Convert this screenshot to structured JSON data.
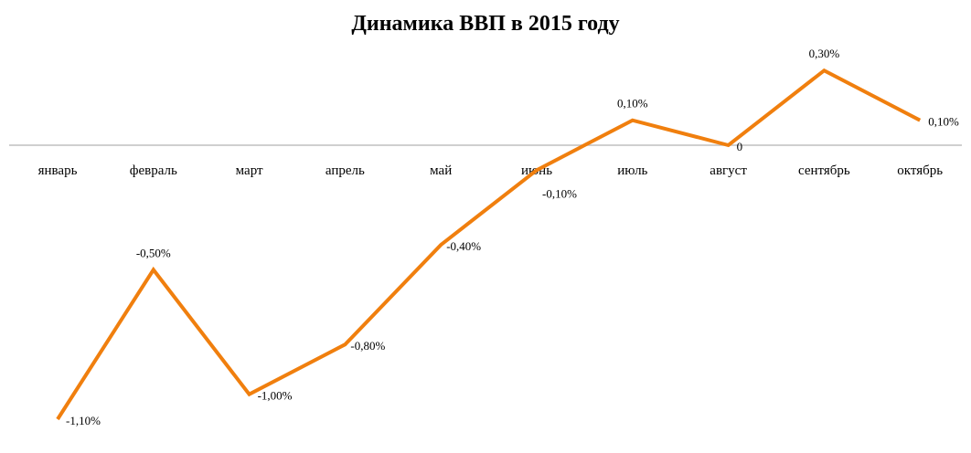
{
  "chart_data": {
    "type": "line",
    "title": "Динамика ВВП в 2015 году",
    "categories": [
      "январь",
      "февраль",
      "март",
      "апрель",
      "май",
      "июнь",
      "июль",
      "август",
      "сентябрь",
      "октябрь"
    ],
    "series": [
      {
        "values": [
          -1.1,
          -0.5,
          -1.0,
          -0.8,
          -0.4,
          -0.1,
          0.1,
          0.0,
          0.3,
          0.1
        ],
        "data_labels": [
          "-1,10%",
          "-0,50%",
          "-1,00%",
          "-0,80%",
          "-0,40%",
          "-0,10%",
          "0,10%",
          "0",
          "0,30%",
          "0,10%"
        ],
        "color": "#F07F0E"
      }
    ],
    "ylim": [
      -1.1,
      0.3
    ],
    "grid": false,
    "legend": "none",
    "axis_color": "#BFBFBF"
  }
}
